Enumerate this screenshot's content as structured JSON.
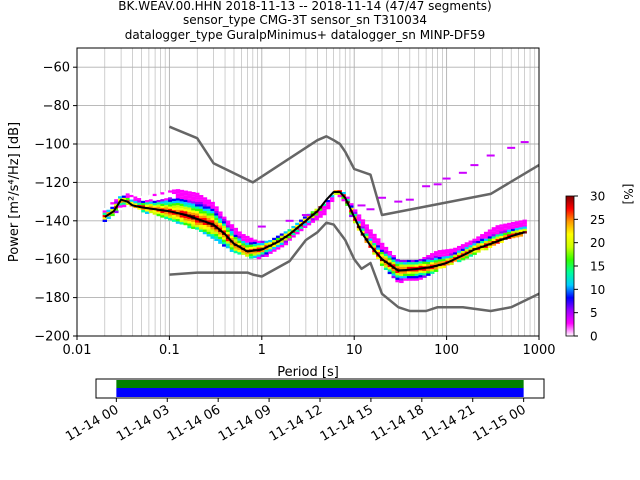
{
  "title": {
    "line1": "BK.WEAV.00.HHN   2018-11-13 -- 2018-11-14  (47/47 segments)",
    "line2": "sensor_type CMG-3T sensor_sn T310034",
    "line3": "datalogger_type GuralpMinimus+ datalogger_sn MINP-DF59"
  },
  "chart_data": [
    {
      "type": "heatmap",
      "xlabel": "Period [s]",
      "ylabel": "Power [m²/s⁴/Hz] [dB]",
      "xscale": "log",
      "xlim": [
        0.01,
        1000
      ],
      "ylim": [
        -200,
        -50
      ],
      "xticks": [
        {
          "v": 0.01,
          "label": "0.01"
        },
        {
          "v": 0.1,
          "label": "0.1"
        },
        {
          "v": 1,
          "label": "1"
        },
        {
          "v": 10,
          "label": "10"
        },
        {
          "v": 100,
          "label": "100"
        },
        {
          "v": 1000,
          "label": "1000"
        }
      ],
      "yticks": [
        {
          "v": -60,
          "label": "−60"
        },
        {
          "v": -80,
          "label": "−80"
        },
        {
          "v": -100,
          "label": "−100"
        },
        {
          "v": -120,
          "label": "−120"
        },
        {
          "v": -140,
          "label": "−140"
        },
        {
          "v": -160,
          "label": "−160"
        },
        {
          "v": -180,
          "label": "−180"
        },
        {
          "v": -200,
          "label": "−200"
        }
      ],
      "grid": true,
      "colorbar": {
        "label": "[%]",
        "range": [
          0,
          30
        ],
        "ticks": [
          {
            "v": 0,
            "label": "0"
          },
          {
            "v": 5,
            "label": "5"
          },
          {
            "v": 10,
            "label": "10"
          },
          {
            "v": 15,
            "label": "15"
          },
          {
            "v": 20,
            "label": "20"
          },
          {
            "v": 25,
            "label": "25"
          },
          {
            "v": 30,
            "label": "30"
          }
        ],
        "colors": [
          "#ffffff",
          "#ff00ff",
          "#9900ff",
          "#0000ff",
          "#00ccff",
          "#00ff99",
          "#33ff00",
          "#ccff00",
          "#ffff00",
          "#ff9900",
          "#ff0000",
          "#800000"
        ]
      },
      "series": [
        {
          "name": "mean",
          "color": "#000000",
          "x": [
            0.02,
            0.025,
            0.03,
            0.035,
            0.04,
            0.05,
            0.07,
            0.1,
            0.15,
            0.2,
            0.3,
            0.4,
            0.5,
            0.7,
            1,
            1.5,
            2,
            3,
            4,
            5,
            6,
            7,
            8,
            10,
            12,
            15,
            20,
            30,
            50,
            70,
            100,
            150,
            200,
            300,
            500,
            700
          ],
          "y": [
            -138,
            -135,
            -129,
            -130,
            -132,
            -133,
            -134,
            -135,
            -137,
            -139,
            -142,
            -147,
            -152,
            -156,
            -155,
            -151,
            -147,
            -140,
            -135,
            -129,
            -125,
            -125,
            -128,
            -138,
            -146,
            -153,
            -160,
            -166,
            -165,
            -164,
            -162,
            -158,
            -155,
            -152,
            -148,
            -146
          ]
        },
        {
          "name": "model-high",
          "color": "#666666",
          "x": [
            0.1,
            0.2,
            0.3,
            0.8,
            1,
            4,
            5,
            6,
            7,
            8,
            10,
            15,
            20,
            300,
            1000
          ],
          "y": [
            -91,
            -97,
            -110,
            -120,
            -117,
            -98,
            -96,
            -98,
            -100,
            -104,
            -113,
            -116,
            -137,
            -126,
            -111
          ]
        },
        {
          "name": "model-low",
          "color": "#666666",
          "x": [
            0.1,
            0.2,
            0.3,
            0.7,
            0.8,
            1,
            2,
            3,
            4,
            5,
            6,
            8,
            10,
            12,
            15,
            20,
            30,
            40,
            60,
            80,
            100,
            150,
            300,
            500,
            1000
          ],
          "y": [
            -168,
            -167,
            -167,
            -167,
            -168,
            -169,
            -161,
            -150,
            -146,
            -141,
            -142,
            -150,
            -160,
            -165,
            -162,
            -178,
            -185,
            -187,
            -187,
            -185,
            -185,
            -185,
            -187,
            -185,
            -178
          ]
        }
      ],
      "density": [
        {
          "x": [
            0.02,
            0.035,
            0.05,
            0.08,
            0.12,
            0.2,
            0.3,
            0.4,
            0.6,
            0.9,
            1.2,
            2,
            3,
            5,
            6.5,
            8,
            10,
            15,
            20,
            30,
            50,
            80,
            120,
            200,
            350,
            700
          ],
          "y": [
            -134,
            -125,
            -128,
            -126,
            -124,
            -126,
            -131,
            -139,
            -147,
            -151,
            -151,
            -145,
            -138,
            -131,
            -124,
            -126,
            -134,
            -145,
            -152,
            -161,
            -161,
            -156,
            -155,
            -150,
            -143,
            -140
          ],
          "level": 5
        },
        {
          "x": [
            0.02,
            0.035,
            0.05,
            0.08,
            0.12,
            0.2,
            0.3,
            0.4,
            0.6,
            0.9,
            1.2,
            2,
            3,
            5,
            6.5,
            8,
            10,
            15,
            20,
            30,
            50,
            80,
            120,
            200,
            350,
            700
          ],
          "y": [
            -140,
            -131,
            -135,
            -138,
            -141,
            -145,
            -150,
            -154,
            -158,
            -160,
            -158,
            -151,
            -143,
            -136,
            -126,
            -130,
            -141,
            -154,
            -163,
            -172,
            -171,
            -166,
            -162,
            -158,
            -152,
            -147
          ],
          "level": 10
        }
      ],
      "scatter_outliers": [
        {
          "x": 12,
          "y": -132
        },
        {
          "x": 15,
          "y": -134
        },
        {
          "x": 20,
          "y": -128
        },
        {
          "x": 30,
          "y": -130
        },
        {
          "x": 40,
          "y": -129
        },
        {
          "x": 60,
          "y": -122
        },
        {
          "x": 80,
          "y": -121
        },
        {
          "x": 100,
          "y": -118
        },
        {
          "x": 150,
          "y": -115
        },
        {
          "x": 200,
          "y": -111
        },
        {
          "x": 300,
          "y": -106
        },
        {
          "x": 500,
          "y": -102
        },
        {
          "x": 700,
          "y": -99
        },
        {
          "x": 2,
          "y": -140
        },
        {
          "x": 3,
          "y": -137
        },
        {
          "x": 1,
          "y": -143
        }
      ]
    },
    {
      "type": "timeline",
      "xticks": [
        "11-14 00",
        "11-14 03",
        "11-14 06",
        "11-14 09",
        "11-14 12",
        "11-14 15",
        "11-14 18",
        "11-14 21",
        "11-15 00"
      ],
      "bands": [
        {
          "color": "#008000",
          "start": 0,
          "end": 24
        },
        {
          "color": "#0000ff",
          "start": 0,
          "end": 24
        }
      ],
      "xlim": [
        -1.2,
        25.2
      ]
    }
  ]
}
